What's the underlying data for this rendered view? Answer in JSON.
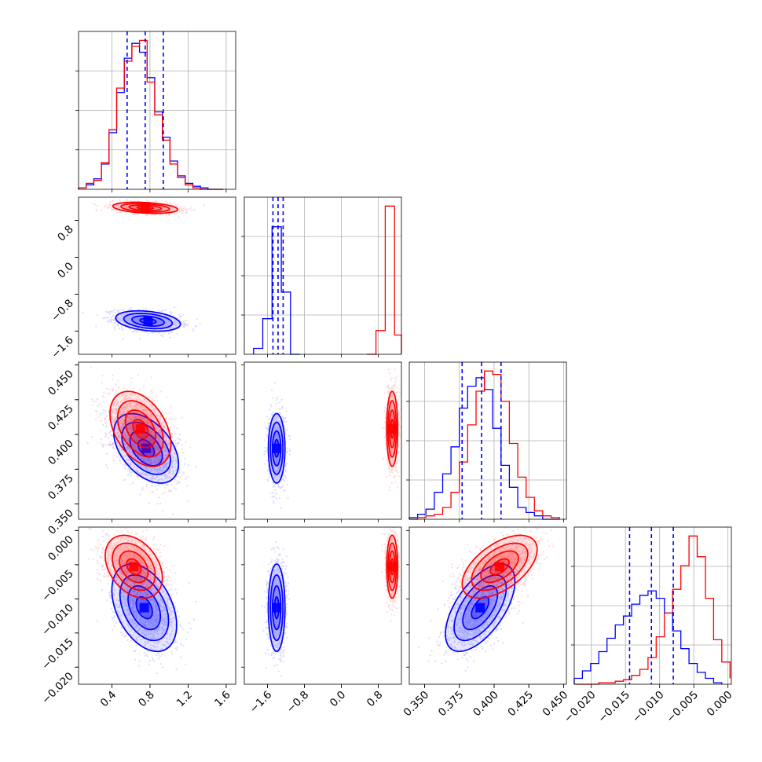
{
  "chart_data": {
    "type": "corner",
    "title": "",
    "grid": true,
    "colors": {
      "blue": "#0000ff",
      "red": "#ff0000"
    },
    "series": [
      {
        "color": "blue"
      },
      {
        "color": "red"
      }
    ],
    "parameters": [
      {
        "range": [
          0.05,
          1.7
        ],
        "ticks": [
          {
            "value": 0.4,
            "label": "0.4"
          },
          {
            "value": 0.8,
            "label": "0.8"
          },
          {
            "value": 1.2,
            "label": "1.2"
          },
          {
            "value": 1.6,
            "label": "1.6"
          }
        ]
      },
      {
        "range": [
          -2.1,
          1.3
        ],
        "ticks": [
          {
            "value": -1.6,
            "label": "−1.6"
          },
          {
            "value": -0.8,
            "label": "−0.8"
          },
          {
            "value": 0.0,
            "label": "0.0"
          },
          {
            "value": 0.8,
            "label": "0.8"
          }
        ]
      },
      {
        "range": [
          0.339,
          0.452
        ],
        "ticks": [
          {
            "value": 0.35,
            "label": "0.350"
          },
          {
            "value": 0.375,
            "label": "0.375"
          },
          {
            "value": 0.4,
            "label": "0.400"
          },
          {
            "value": 0.425,
            "label": "0.425"
          },
          {
            "value": 0.45,
            "label": "0.450"
          }
        ]
      },
      {
        "range": [
          -0.0225,
          0.0005
        ],
        "ticks": [
          {
            "value": -0.02,
            "label": "−0.020"
          },
          {
            "value": -0.015,
            "label": "−0.015"
          },
          {
            "value": -0.01,
            "label": "−0.010"
          },
          {
            "value": -0.005,
            "label": "−0.005"
          },
          {
            "value": 0.0,
            "label": "0.000"
          }
        ]
      }
    ],
    "histograms": [
      {
        "param": 0,
        "quantiles_blue": [
          0.56,
          0.75,
          0.94
        ],
        "blue": {
          "edges": [
            0.05,
            0.13,
            0.21,
            0.29,
            0.37,
            0.45,
            0.53,
            0.61,
            0.69,
            0.77,
            0.85,
            0.93,
            1.01,
            1.09,
            1.17,
            1.25,
            1.33,
            1.41,
            1.49,
            1.57
          ],
          "counts": [
            1,
            3,
            7,
            17,
            38,
            65,
            88,
            98,
            92,
            75,
            52,
            35,
            19,
            9,
            4,
            2,
            1,
            0,
            0
          ]
        },
        "red": {
          "edges": [
            0.05,
            0.13,
            0.21,
            0.29,
            0.37,
            0.45,
            0.53,
            0.61,
            0.69,
            0.77,
            0.85,
            0.93,
            1.01,
            1.09,
            1.17,
            1.25,
            1.33,
            1.41,
            1.49,
            1.57
          ],
          "counts": [
            1,
            4,
            6,
            18,
            40,
            68,
            86,
            96,
            100,
            72,
            50,
            33,
            17,
            8,
            3,
            1,
            0,
            0,
            0
          ]
        }
      },
      {
        "param": 1,
        "quantiles_blue": [
          -1.48,
          -1.37,
          -1.26
        ],
        "blue": {
          "edges": [
            -1.9,
            -1.7,
            -1.5,
            -1.3,
            -1.1,
            -0.9
          ],
          "counts": [
            4,
            24,
            86,
            42,
            0
          ]
        },
        "red": {
          "edges": [
            0.55,
            0.75,
            0.95,
            1.15,
            1.3
          ],
          "counts": [
            0,
            16,
            100,
            13
          ]
        }
      },
      {
        "param": 2,
        "quantiles_blue": [
          0.377,
          0.391,
          0.405
        ],
        "blue": {
          "edges": [
            0.339,
            0.345,
            0.351,
            0.357,
            0.363,
            0.369,
            0.375,
            0.381,
            0.387,
            0.393,
            0.399,
            0.405,
            0.411,
            0.417,
            0.423,
            0.429,
            0.435,
            0.441,
            0.447
          ],
          "counts": [
            1,
            3,
            6,
            16,
            27,
            43,
            66,
            79,
            84,
            77,
            54,
            32,
            19,
            7,
            4,
            2,
            0,
            0
          ]
        },
        "red": {
          "edges": [
            0.339,
            0.345,
            0.351,
            0.357,
            0.363,
            0.369,
            0.375,
            0.381,
            0.387,
            0.393,
            0.399,
            0.405,
            0.411,
            0.417,
            0.423,
            0.429,
            0.435,
            0.441,
            0.447
          ],
          "counts": [
            0,
            1,
            2,
            3,
            7,
            16,
            34,
            56,
            76,
            88,
            86,
            70,
            45,
            25,
            13,
            5,
            2,
            1
          ]
        }
      },
      {
        "param": 3,
        "quantiles_blue": [
          -0.0144,
          -0.0112,
          -0.008
        ],
        "blue": {
          "edges": [
            -0.0225,
            -0.0213,
            -0.0201,
            -0.0189,
            -0.0177,
            -0.0165,
            -0.0153,
            -0.0141,
            -0.0129,
            -0.0117,
            -0.0105,
            -0.0093,
            -0.0081,
            -0.0069,
            -0.0057,
            -0.0045,
            -0.0033,
            -0.0021,
            -0.0009
          ],
          "counts": [
            4,
            9,
            14,
            22,
            31,
            40,
            46,
            54,
            60,
            63,
            58,
            48,
            36,
            24,
            14,
            8,
            4,
            1
          ]
        },
        "red": {
          "edges": [
            -0.0225,
            -0.0213,
            -0.0201,
            -0.0189,
            -0.0177,
            -0.0165,
            -0.0153,
            -0.0141,
            -0.0129,
            -0.0117,
            -0.0105,
            -0.0093,
            -0.0081,
            -0.0069,
            -0.0057,
            -0.0045,
            -0.0033,
            -0.0021,
            -0.0009,
            0.0003
          ],
          "counts": [
            0,
            0,
            0,
            1,
            1,
            2,
            3,
            6,
            10,
            18,
            32,
            48,
            64,
            80,
            100,
            86,
            58,
            30,
            15,
            4
          ]
        }
      }
    ],
    "scatter_panels": [
      {
        "x": 0,
        "y": 1,
        "blue": {
          "mean": [
            0.78,
            -1.38
          ],
          "sd": [
            0.17,
            0.11
          ],
          "rho": -0.3
        },
        "red": {
          "mean": [
            0.75,
            1.07
          ],
          "sd": [
            0.17,
            0.06
          ],
          "rho": -0.3
        }
      },
      {
        "x": 0,
        "y": 2,
        "blue": {
          "mean": [
            0.76,
            0.39
          ],
          "sd": [
            0.17,
            0.0125
          ],
          "rho": -0.45
        },
        "red": {
          "mean": [
            0.7,
            0.404
          ],
          "sd": [
            0.16,
            0.0135
          ],
          "rho": -0.4
        }
      },
      {
        "x": 1,
        "y": 2,
        "blue": {
          "mean": [
            -1.4,
            0.39
          ],
          "sd": [
            0.09,
            0.0125
          ],
          "rho": 0.0
        },
        "red": {
          "mean": [
            1.1,
            0.404
          ],
          "sd": [
            0.06,
            0.0135
          ],
          "rho": 0.0
        }
      },
      {
        "x": 0,
        "y": 3,
        "blue": {
          "mean": [
            0.74,
            -0.0113
          ],
          "sd": [
            0.17,
            0.0032
          ],
          "rho": -0.4
        },
        "red": {
          "mean": [
            0.63,
            -0.0053
          ],
          "sd": [
            0.15,
            0.0023
          ],
          "rho": -0.35
        }
      },
      {
        "x": 1,
        "y": 3,
        "blue": {
          "mean": [
            -1.4,
            -0.0113
          ],
          "sd": [
            0.09,
            0.0032
          ],
          "rho": 0.0
        },
        "red": {
          "mean": [
            1.1,
            -0.0053
          ],
          "sd": [
            0.06,
            0.0023
          ],
          "rho": 0.0
        }
      },
      {
        "x": 2,
        "y": 3,
        "blue": {
          "mean": [
            0.39,
            -0.0113
          ],
          "sd": [
            0.0125,
            0.0032
          ],
          "rho": 0.6
        },
        "red": {
          "mean": [
            0.404,
            -0.0053
          ],
          "sd": [
            0.0135,
            0.0023
          ],
          "rho": 0.55
        }
      }
    ]
  }
}
